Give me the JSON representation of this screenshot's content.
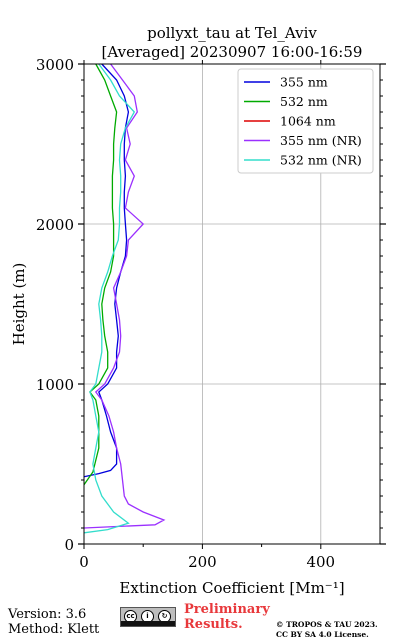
{
  "chart_data": {
    "type": "line",
    "title": "pollyxt_tau at Tel_Aviv",
    "subtitle": "[Averaged] 20230907 16:00-16:59",
    "xlabel": "Extinction Coefficient [Mm⁻¹]",
    "ylabel": "Height (m)",
    "xlim": [
      0,
      500
    ],
    "ylim": [
      0,
      3000
    ],
    "x_ticks": [
      "0",
      "200",
      "400"
    ],
    "y_ticks": [
      "0",
      "1000",
      "2000",
      "3000"
    ],
    "grid": true,
    "legend_position": "top-right",
    "series": [
      {
        "name": "355 nm",
        "color": "#0000dd",
        "points": [
          [
            0,
            420
          ],
          [
            25,
            440
          ],
          [
            45,
            460
          ],
          [
            55,
            500
          ],
          [
            55,
            600
          ],
          [
            45,
            700
          ],
          [
            38,
            800
          ],
          [
            30,
            900
          ],
          [
            25,
            950
          ],
          [
            40,
            1000
          ],
          [
            55,
            1100
          ],
          [
            55,
            1200
          ],
          [
            58,
            1300
          ],
          [
            55,
            1400
          ],
          [
            52,
            1500
          ],
          [
            55,
            1600
          ],
          [
            62,
            1700
          ],
          [
            70,
            1800
          ],
          [
            72,
            1900
          ],
          [
            70,
            2000
          ],
          [
            68,
            2100
          ],
          [
            68,
            2200
          ],
          [
            70,
            2300
          ],
          [
            68,
            2400
          ],
          [
            68,
            2500
          ],
          [
            70,
            2600
          ],
          [
            75,
            2700
          ],
          [
            68,
            2800
          ],
          [
            55,
            2900
          ],
          [
            30,
            3000
          ]
        ]
      },
      {
        "name": "532 nm",
        "color": "#00aa00",
        "points": [
          [
            0,
            370
          ],
          [
            15,
            450
          ],
          [
            25,
            600
          ],
          [
            25,
            800
          ],
          [
            20,
            900
          ],
          [
            10,
            950
          ],
          [
            25,
            1000
          ],
          [
            40,
            1100
          ],
          [
            40,
            1200
          ],
          [
            35,
            1300
          ],
          [
            32,
            1400
          ],
          [
            30,
            1500
          ],
          [
            35,
            1600
          ],
          [
            45,
            1700
          ],
          [
            50,
            1800
          ],
          [
            50,
            1900
          ],
          [
            50,
            2000
          ],
          [
            48,
            2100
          ],
          [
            48,
            2200
          ],
          [
            48,
            2300
          ],
          [
            50,
            2400
          ],
          [
            50,
            2500
          ],
          [
            52,
            2600
          ],
          [
            55,
            2700
          ],
          [
            45,
            2800
          ],
          [
            35,
            2900
          ],
          [
            20,
            3000
          ]
        ]
      },
      {
        "name": "1064 nm",
        "color": "#dd0000",
        "points": []
      },
      {
        "name": "355 nm (NR)",
        "color": "#9b30ff",
        "points": [
          [
            0,
            100
          ],
          [
            60,
            110
          ],
          [
            120,
            120
          ],
          [
            135,
            150
          ],
          [
            100,
            200
          ],
          [
            75,
            250
          ],
          [
            68,
            300
          ],
          [
            65,
            400
          ],
          [
            62,
            500
          ],
          [
            55,
            600
          ],
          [
            50,
            700
          ],
          [
            42,
            800
          ],
          [
            30,
            900
          ],
          [
            20,
            950
          ],
          [
            35,
            1000
          ],
          [
            50,
            1100
          ],
          [
            60,
            1200
          ],
          [
            62,
            1300
          ],
          [
            60,
            1400
          ],
          [
            55,
            1500
          ],
          [
            50,
            1600
          ],
          [
            62,
            1700
          ],
          [
            72,
            1800
          ],
          [
            75,
            1900
          ],
          [
            100,
            2000
          ],
          [
            70,
            2100
          ],
          [
            75,
            2200
          ],
          [
            85,
            2300
          ],
          [
            70,
            2400
          ],
          [
            78,
            2500
          ],
          [
            72,
            2600
          ],
          [
            90,
            2700
          ],
          [
            85,
            2800
          ],
          [
            65,
            2900
          ],
          [
            45,
            3000
          ]
        ]
      },
      {
        "name": "532 nm (NR)",
        "color": "#33ddcc",
        "points": [
          [
            0,
            70
          ],
          [
            40,
            90
          ],
          [
            75,
            130
          ],
          [
            50,
            200
          ],
          [
            30,
            300
          ],
          [
            20,
            400
          ],
          [
            15,
            500
          ],
          [
            20,
            600
          ],
          [
            25,
            700
          ],
          [
            20,
            800
          ],
          [
            15,
            900
          ],
          [
            10,
            950
          ],
          [
            20,
            1000
          ],
          [
            25,
            1100
          ],
          [
            30,
            1200
          ],
          [
            30,
            1300
          ],
          [
            28,
            1400
          ],
          [
            25,
            1500
          ],
          [
            30,
            1600
          ],
          [
            40,
            1700
          ],
          [
            48,
            1800
          ],
          [
            58,
            1900
          ],
          [
            60,
            2000
          ],
          [
            60,
            2100
          ],
          [
            62,
            2200
          ],
          [
            62,
            2300
          ],
          [
            60,
            2400
          ],
          [
            62,
            2500
          ],
          [
            70,
            2600
          ],
          [
            85,
            2700
          ],
          [
            60,
            2800
          ],
          [
            45,
            2900
          ],
          [
            25,
            3000
          ]
        ]
      }
    ]
  },
  "footer": {
    "version": "Version: 3.6",
    "method": "Method: Klett",
    "license_badge": "cc by-sa",
    "preliminary_line1": "Preliminary",
    "preliminary_line2": "Results.",
    "copyright_line1": "© TROPOS & TAU 2023.",
    "copyright_line2": "CC BY SA 4.0 License."
  }
}
